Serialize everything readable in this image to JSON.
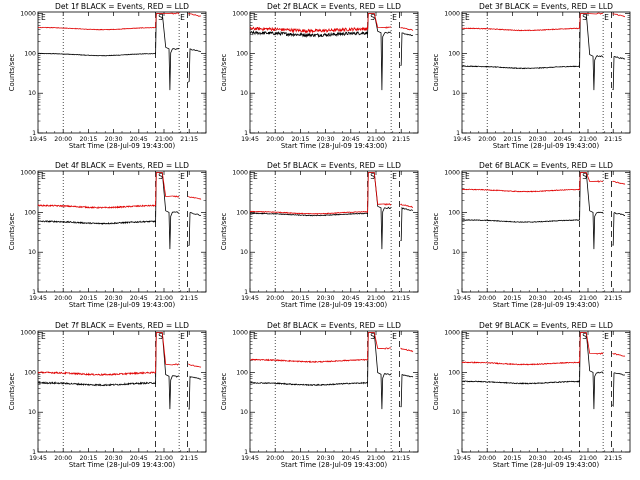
{
  "panels": [
    {
      "title": "Det 1f BLACK = Events, RED = LLD",
      "events_base": 100,
      "lld_base": 450,
      "events_end": 130,
      "lld_end": 1000,
      "noise": 0.015,
      "ymax_cut": false
    },
    {
      "title": "Det 2f BLACK = Events, RED = LLD",
      "events_base": 330,
      "lld_base": 420,
      "events_end": 330,
      "lld_end": 450,
      "noise": 0.09,
      "ymax_cut": false
    },
    {
      "title": "Det 3f BLACK = Events, RED = LLD",
      "events_base": 48,
      "lld_base": 430,
      "events_end": 85,
      "lld_end": 1000,
      "noise": 0.02,
      "ymax_cut": false
    },
    {
      "title": "Det 4f BLACK = Events, RED = LLD",
      "events_base": 60,
      "lld_base": 150,
      "events_end": 100,
      "lld_end": 250,
      "noise": 0.035,
      "ymax_cut": false
    },
    {
      "title": "Det 5f BLACK = Events, RED = LLD",
      "events_base": 95,
      "lld_base": 105,
      "events_end": 130,
      "lld_end": 160,
      "noise": 0.02,
      "ymax_cut": false
    },
    {
      "title": "Det 6f BLACK = Events, RED = LLD",
      "events_base": 65,
      "lld_base": 380,
      "events_end": 100,
      "lld_end": 600,
      "noise": 0.02,
      "ymax_cut": false
    },
    {
      "title": "Det 7f BLACK = Events, RED = LLD",
      "events_base": 55,
      "lld_base": 100,
      "events_end": 80,
      "lld_end": 160,
      "noise": 0.04,
      "ymax_cut": false
    },
    {
      "title": "Det 8f BLACK = Events, RED = LLD",
      "events_base": 55,
      "lld_base": 210,
      "events_end": 90,
      "lld_end": 400,
      "noise": 0.03,
      "ymax_cut": false
    },
    {
      "title": "Det 9f BLACK = Events, RED = LLD",
      "events_base": 60,
      "lld_base": 180,
      "events_end": 100,
      "lld_end": 300,
      "noise": 0.025,
      "ymax_cut": false
    }
  ],
  "chart_data": {
    "type": "line",
    "layout": "3x3 grid",
    "xlabel": "Start Time (28-Jul-09 19:43:00)",
    "ylabel": "Counts/sec",
    "x_ticks": [
      "19:45",
      "20:00",
      "20:15",
      "20:30",
      "20:45",
      "21:00",
      "21:15"
    ],
    "x_tick_minutes": [
      0,
      15,
      30,
      45,
      60,
      75,
      90
    ],
    "x_range_minutes": [
      0,
      100
    ],
    "y_scale": "log",
    "y_ticks": [
      "1",
      "10",
      "100",
      "1000"
    ],
    "ylim": [
      1,
      1100
    ],
    "series": [
      {
        "name": "Events",
        "color": "#000000"
      },
      {
        "name": "LLD",
        "color": "#e00000"
      }
    ],
    "annotations": [
      {
        "label": "E",
        "at_minutes": 0
      },
      {
        "label": "S",
        "at_minutes": 71
      },
      {
        "label": "E",
        "at_minutes": 84
      }
    ],
    "dotted_markers_minutes": [
      15,
      84
    ],
    "dashed_markers_minutes": [
      70,
      89
    ]
  }
}
